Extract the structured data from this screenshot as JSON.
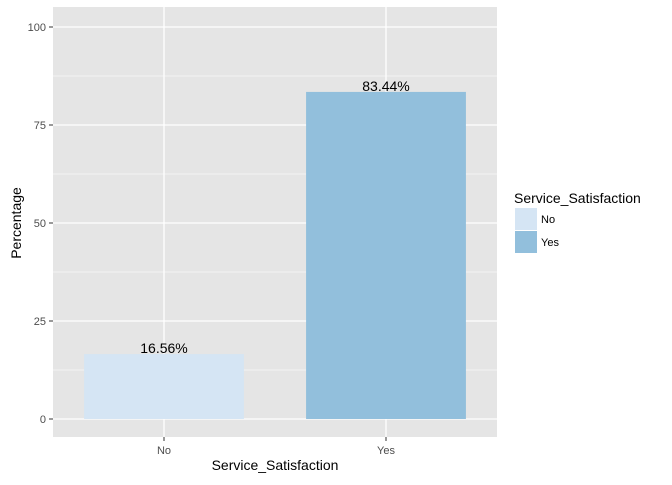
{
  "chart_data": {
    "type": "bar",
    "xlabel": "Service_Satisfaction",
    "ylabel": "Percentage",
    "categories": [
      "No",
      "Yes"
    ],
    "values": [
      16.56,
      83.44
    ],
    "data_labels": [
      "16.56%",
      "83.44%"
    ],
    "ylim": [
      0,
      100
    ],
    "yticks": [
      0,
      25,
      50,
      75,
      100
    ],
    "grid": true,
    "legend": {
      "title": "Service_Satisfaction",
      "position": "right",
      "entries": [
        "No",
        "Yes"
      ]
    },
    "colors": {
      "No": "#d5e5f4",
      "Yes": "#92bfdc",
      "panel": "#e5e5e5",
      "grid": "#ffffff",
      "text": "#000000",
      "tick_text": "#4d4d4d"
    }
  }
}
